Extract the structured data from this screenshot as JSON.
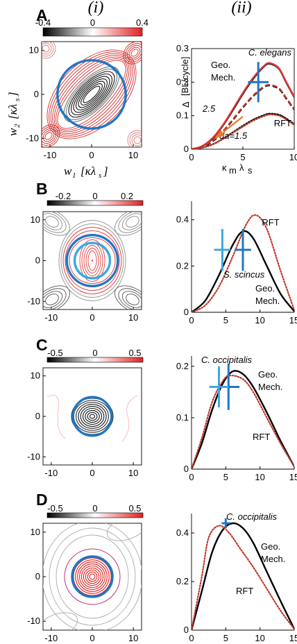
{
  "column_headers": [
    "(i)",
    "(ii)"
  ],
  "chart_data": [
    {
      "panel": "A",
      "type": "contour",
      "colorbar": {
        "ticks": [
          "-0.4",
          "0",
          "0.4"
        ],
        "range": [
          -0.4,
          0.4
        ]
      },
      "xlabel_parts": [
        "w",
        "1",
        "[κλ",
        "s",
        "]"
      ],
      "ylabel_parts": [
        "w",
        "2",
        "[κλ",
        "s",
        "]"
      ],
      "xlim": [
        -12,
        12
      ],
      "ylim": [
        -12,
        12
      ],
      "xticks": [
        "-10",
        "0",
        "10"
      ],
      "yticks": [
        "10",
        "0",
        "-10"
      ],
      "gait_circle": {
        "cx": 0,
        "cy": 0,
        "r": 8.2,
        "color": "#1f77c4"
      }
    },
    {
      "panel": "A",
      "type": "line",
      "ylabel": "Δ",
      "ylabel_unit": "[BL/cycle]",
      "xlabel_parts": [
        "κ",
        "m",
        " λ",
        "s"
      ],
      "xlim": [
        0,
        10
      ],
      "ylim": [
        0,
        0.3
      ],
      "xticks": [
        "0",
        "5",
        "10"
      ],
      "yticks": [
        "0",
        "0.1",
        "0.2",
        "0.3"
      ],
      "series": [
        {
          "style": "solid",
          "color": "#000000",
          "x": [
            0,
            1,
            2,
            3,
            4,
            5,
            6,
            7,
            7.6,
            8.5,
            9.2,
            10
          ],
          "y": [
            0,
            0.008,
            0.03,
            0.068,
            0.115,
            0.165,
            0.21,
            0.245,
            0.255,
            0.24,
            0.2,
            0.155
          ]
        },
        {
          "style": "solid",
          "color": "#e23a3a",
          "x": [
            0,
            1,
            2,
            3,
            4,
            5,
            6,
            7,
            7.6,
            8.5,
            9.2,
            10
          ],
          "y": [
            0,
            0.009,
            0.032,
            0.07,
            0.118,
            0.168,
            0.213,
            0.247,
            0.257,
            0.242,
            0.202,
            0.157
          ]
        },
        {
          "style": "dashed",
          "color": "#000000",
          "x": [
            0,
            1,
            2,
            3,
            4,
            5,
            6,
            7,
            7.6,
            8.5,
            9.2,
            10
          ],
          "y": [
            0,
            0.006,
            0.022,
            0.05,
            0.086,
            0.124,
            0.158,
            0.184,
            0.19,
            0.18,
            0.152,
            0.118
          ]
        },
        {
          "style": "dashed",
          "color": "#c0392b",
          "x": [
            0,
            1,
            2,
            3,
            4,
            5,
            6,
            7,
            7.6,
            8.5,
            9.2,
            10
          ],
          "y": [
            0,
            0.007,
            0.024,
            0.052,
            0.088,
            0.126,
            0.16,
            0.186,
            0.192,
            0.182,
            0.154,
            0.12
          ]
        },
        {
          "style": "dotted",
          "color": "#000000",
          "x": [
            0,
            1,
            2,
            3,
            4,
            5,
            6,
            7,
            7.6,
            8.5,
            9.2,
            10
          ],
          "y": [
            0,
            0.004,
            0.014,
            0.03,
            0.05,
            0.07,
            0.088,
            0.101,
            0.106,
            0.103,
            0.092,
            0.075
          ]
        },
        {
          "style": "dotted",
          "color": "#c0392b",
          "x": [
            0,
            1,
            2,
            3,
            4,
            5,
            6,
            7,
            7.6,
            8.5,
            9.2,
            10
          ],
          "y": [
            0,
            0.004,
            0.013,
            0.029,
            0.048,
            0.067,
            0.085,
            0.098,
            0.103,
            0.1,
            0.089,
            0.072
          ]
        }
      ],
      "markers": [
        {
          "label": "C. elegans",
          "x": 6.5,
          "y": 0.2,
          "xerr": 1.0,
          "yerr": 0.06,
          "color": "#1f77c4"
        }
      ],
      "annotations": [
        "Geo.",
        "Mech.",
        "RFT",
        "2.5",
        "da=1.5"
      ]
    },
    {
      "panel": "B",
      "type": "contour",
      "colorbar": {
        "ticks": [
          "-0.2",
          "0",
          "0.2"
        ],
        "range": [
          -0.3,
          0.3
        ]
      },
      "xlim": [
        -12,
        12
      ],
      "ylim": [
        -12,
        12
      ],
      "xticks": [
        "-10",
        "0",
        "10"
      ],
      "yticks": [
        "10",
        "0",
        "-10"
      ],
      "gait_circles": [
        {
          "r": 6.2,
          "color": "#1f77c4"
        },
        {
          "r": 4.3,
          "color": "#3aa8e0"
        }
      ]
    },
    {
      "panel": "B",
      "type": "line",
      "xlim": [
        0,
        15
      ],
      "ylim": [
        0,
        0.48
      ],
      "xticks": [
        "0",
        "5",
        "10",
        "15"
      ],
      "yticks": [
        "0",
        "0.2",
        "0.4"
      ],
      "series": [
        {
          "style": "solid",
          "color": "#000000",
          "x": [
            0,
            2,
            4,
            6,
            7.5,
            9,
            11,
            13,
            15
          ],
          "y": [
            0,
            0.05,
            0.16,
            0.29,
            0.35,
            0.32,
            0.2,
            0.08,
            0.005
          ]
        },
        {
          "style": "dotted",
          "color": "#c0392b",
          "x": [
            0,
            2,
            4,
            6,
            8,
            9.4,
            11,
            13,
            15
          ],
          "y": [
            0,
            0.03,
            0.11,
            0.24,
            0.38,
            0.42,
            0.36,
            0.18,
            0.01
          ]
        }
      ],
      "markers": [
        {
          "label": "",
          "x": 7.5,
          "y": 0.27,
          "xerr": 1.2,
          "yerr": 0.09,
          "color": "#1f77c4"
        },
        {
          "label": "",
          "x": 4.5,
          "y": 0.27,
          "xerr": 1.2,
          "yerr": 0.09,
          "color": "#3aa8e0"
        }
      ],
      "annotations": [
        "RFT",
        "S. scincus",
        "Geo.",
        "Mech."
      ]
    },
    {
      "panel": "C",
      "type": "contour",
      "colorbar": {
        "ticks": [
          "-0.5",
          "0",
          "0.5"
        ],
        "range": [
          -0.6,
          0.6
        ]
      },
      "xlim": [
        -12,
        12
      ],
      "ylim": [
        -12,
        12
      ],
      "xticks": [
        "-10",
        "0",
        "10"
      ],
      "yticks": [
        "10",
        "0",
        "-10"
      ],
      "gait_circle": {
        "cx": 0,
        "cy": 0,
        "r": 4.7,
        "color": "#1f77c4"
      }
    },
    {
      "panel": "C",
      "type": "line",
      "xlim": [
        0,
        15
      ],
      "ylim": [
        0,
        0.22
      ],
      "xticks": [
        "0",
        "5",
        "10",
        "15"
      ],
      "yticks": [
        "0",
        "0.1",
        "0.2"
      ],
      "series": [
        {
          "style": "solid",
          "color": "#000000",
          "x": [
            0,
            1.5,
            3,
            4.5,
            6,
            7.5,
            9,
            11,
            13,
            15
          ],
          "y": [
            0,
            0.05,
            0.115,
            0.165,
            0.19,
            0.185,
            0.16,
            0.11,
            0.055,
            0.005
          ]
        },
        {
          "style": "dotted",
          "color": "#c0392b",
          "x": [
            0,
            1.5,
            3,
            4.5,
            5.6,
            7.5,
            9,
            11,
            13,
            15
          ],
          "y": [
            0,
            0.06,
            0.13,
            0.17,
            0.182,
            0.175,
            0.15,
            0.1,
            0.05,
            0.005
          ]
        }
      ],
      "markers": [
        {
          "label": "",
          "x": 5.4,
          "y": 0.16,
          "xerr": 1.6,
          "yerr": 0.045,
          "color": "#1f77c4"
        },
        {
          "label": "",
          "x": 4.0,
          "y": 0.16,
          "xerr": 1.4,
          "yerr": 0.04,
          "color": "#3aa8e0"
        }
      ],
      "annotations": [
        "C. occipitalis",
        "Geo.",
        "Mech.",
        "RFT"
      ]
    },
    {
      "panel": "D",
      "type": "contour",
      "colorbar": {
        "ticks": [
          "-0.5",
          "0",
          "0.5"
        ],
        "range": [
          -0.6,
          0.6
        ]
      },
      "xlim": [
        -12,
        12
      ],
      "ylim": [
        -12,
        12
      ],
      "xticks": [
        "-10",
        "0",
        "10"
      ],
      "yticks": [
        "10",
        "0",
        "-10"
      ],
      "gait_circle": {
        "cx": 0,
        "cy": 0,
        "r": 4.9,
        "color": "#1f77c4"
      }
    },
    {
      "panel": "D",
      "type": "line",
      "xlim": [
        0,
        15
      ],
      "ylim": [
        0,
        0.48
      ],
      "xticks": [
        "0",
        "5",
        "10",
        "15"
      ],
      "yticks": [
        "0",
        "0.2",
        "0.4"
      ],
      "series": [
        {
          "style": "solid",
          "color": "#000000",
          "x": [
            0,
            1.5,
            3,
            4.5,
            6,
            7.5,
            9,
            11,
            13,
            15
          ],
          "y": [
            0,
            0.16,
            0.32,
            0.41,
            0.44,
            0.42,
            0.36,
            0.24,
            0.12,
            0.005
          ]
        },
        {
          "style": "dotted",
          "color": "#c0392b",
          "x": [
            0,
            1.5,
            2.5,
            4,
            5.5,
            7,
            9,
            11,
            13,
            15
          ],
          "y": [
            0,
            0.22,
            0.38,
            0.43,
            0.4,
            0.34,
            0.26,
            0.17,
            0.08,
            0.005
          ]
        }
      ],
      "markers": [
        {
          "label": "",
          "x": 5.0,
          "y": 0.44,
          "xerr": 0.6,
          "yerr": 0.02,
          "color": "#1f77c4"
        }
      ],
      "annotations": [
        "C. occipitalis",
        "Geo.",
        "Mech.",
        "RFT"
      ]
    }
  ]
}
